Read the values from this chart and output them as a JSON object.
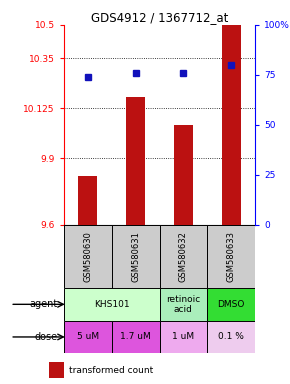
{
  "title": "GDS4912 / 1367712_at",
  "samples": [
    "GSM580630",
    "GSM580631",
    "GSM580632",
    "GSM580633"
  ],
  "bar_values": [
    9.82,
    10.175,
    10.05,
    10.5
  ],
  "percentile_values": [
    74,
    76,
    76,
    80
  ],
  "ymin": 9.6,
  "ymax": 10.5,
  "yticks_left": [
    9.6,
    9.9,
    10.125,
    10.35,
    10.5
  ],
  "ytick_labels_left": [
    "9.6",
    "9.9",
    "10.125",
    "10.35",
    "10.5"
  ],
  "yticks_right_pct": [
    0,
    25,
    50,
    75,
    100
  ],
  "ytick_labels_right": [
    "0",
    "25",
    "50",
    "75",
    "100%"
  ],
  "bar_color": "#bb1111",
  "dot_color": "#1111bb",
  "agent_configs": [
    [
      0,
      2,
      "KHS101",
      "#ccffcc"
    ],
    [
      2,
      3,
      "retinoic\nacid",
      "#aaeebb"
    ],
    [
      3,
      4,
      "DMSO",
      "#33dd33"
    ]
  ],
  "dose_configs": [
    [
      0,
      1,
      "5 uM",
      "#dd55dd"
    ],
    [
      1,
      2,
      "1.7 uM",
      "#dd55dd"
    ],
    [
      2,
      3,
      "1 uM",
      "#eeaaee"
    ],
    [
      3,
      4,
      "0.1 %",
      "#eeccee"
    ]
  ],
  "sample_bg": "#cccccc",
  "n_samples": 4
}
